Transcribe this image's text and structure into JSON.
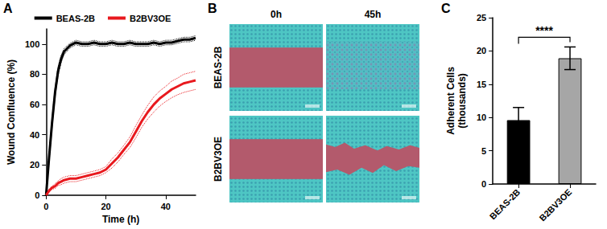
{
  "panel_labels": [
    "A",
    "B",
    "C"
  ],
  "chart_data": [
    {
      "type": "line",
      "x_label": "Time (h)",
      "y_label": "Wound Confluence (%)",
      "x": [
        0,
        1,
        2,
        3,
        4,
        5,
        6,
        8,
        10,
        12,
        14,
        16,
        18,
        20,
        22,
        24,
        26,
        28,
        30,
        32,
        34,
        36,
        38,
        40,
        42,
        44,
        46,
        48,
        50
      ],
      "series": [
        {
          "name": "BEAS-2B",
          "color": "#000000",
          "values": [
            0,
            25,
            48,
            68,
            82,
            90,
            95,
            99,
            101,
            100,
            100,
            101,
            100,
            100,
            101,
            100,
            100,
            101,
            100,
            100,
            100,
            101,
            100,
            101,
            101,
            102,
            103,
            103,
            104
          ],
          "error": [
            0,
            3,
            3,
            3,
            3,
            2.5,
            2,
            1.5,
            1.5,
            1.5,
            1.5,
            1.5,
            1.5,
            1.5,
            1.5,
            1.5,
            1.5,
            1.5,
            1.5,
            1.5,
            1.5,
            1.5,
            1.5,
            1.5,
            1.5,
            1.5,
            1.5,
            1.5,
            1.5
          ]
        },
        {
          "name": "B2BV3OE",
          "color": "#e8191e",
          "values": [
            0,
            3,
            5,
            6,
            8,
            9,
            10,
            11,
            11,
            12,
            13,
            14,
            15,
            17,
            21,
            25,
            30,
            35,
            42,
            49,
            55,
            60,
            64,
            67,
            70,
            72,
            74,
            75,
            76
          ],
          "error": [
            0,
            1,
            1,
            1.5,
            1.5,
            2,
            2,
            2,
            2,
            2,
            2,
            2,
            2,
            2,
            3,
            3,
            3,
            3.5,
            4,
            4,
            4.5,
            5,
            5,
            5,
            5.5,
            5.5,
            6,
            6,
            6
          ]
        }
      ],
      "xlim": [
        0,
        50
      ],
      "xticks": [
        0,
        20,
        40
      ],
      "ylim": [
        0,
        110
      ],
      "yticks": [
        0,
        20,
        40,
        60,
        80,
        100
      ],
      "grid": false,
      "legend": "top",
      "line_style": "solid"
    },
    {
      "type": "bar",
      "y_label": "Adherent Cells\n(thousands)",
      "categories": [
        "BEAS-2B",
        "B2BV3OE"
      ],
      "values": [
        9.6,
        18.9
      ],
      "error": [
        1.9,
        1.7
      ],
      "colors": [
        "#000000",
        "#a6a6a6"
      ],
      "ylim": [
        0,
        25
      ],
      "yticks": [
        0,
        5,
        10,
        15,
        20,
        25
      ],
      "grid": false,
      "annotations": [
        {
          "text": "****",
          "between": [
            "BEAS-2B",
            "B2BV3OE"
          ]
        }
      ]
    }
  ],
  "image_panel": {
    "columns": [
      "0h",
      "45h"
    ],
    "rows": [
      "BEAS-2B",
      "B2BV3OE"
    ]
  }
}
